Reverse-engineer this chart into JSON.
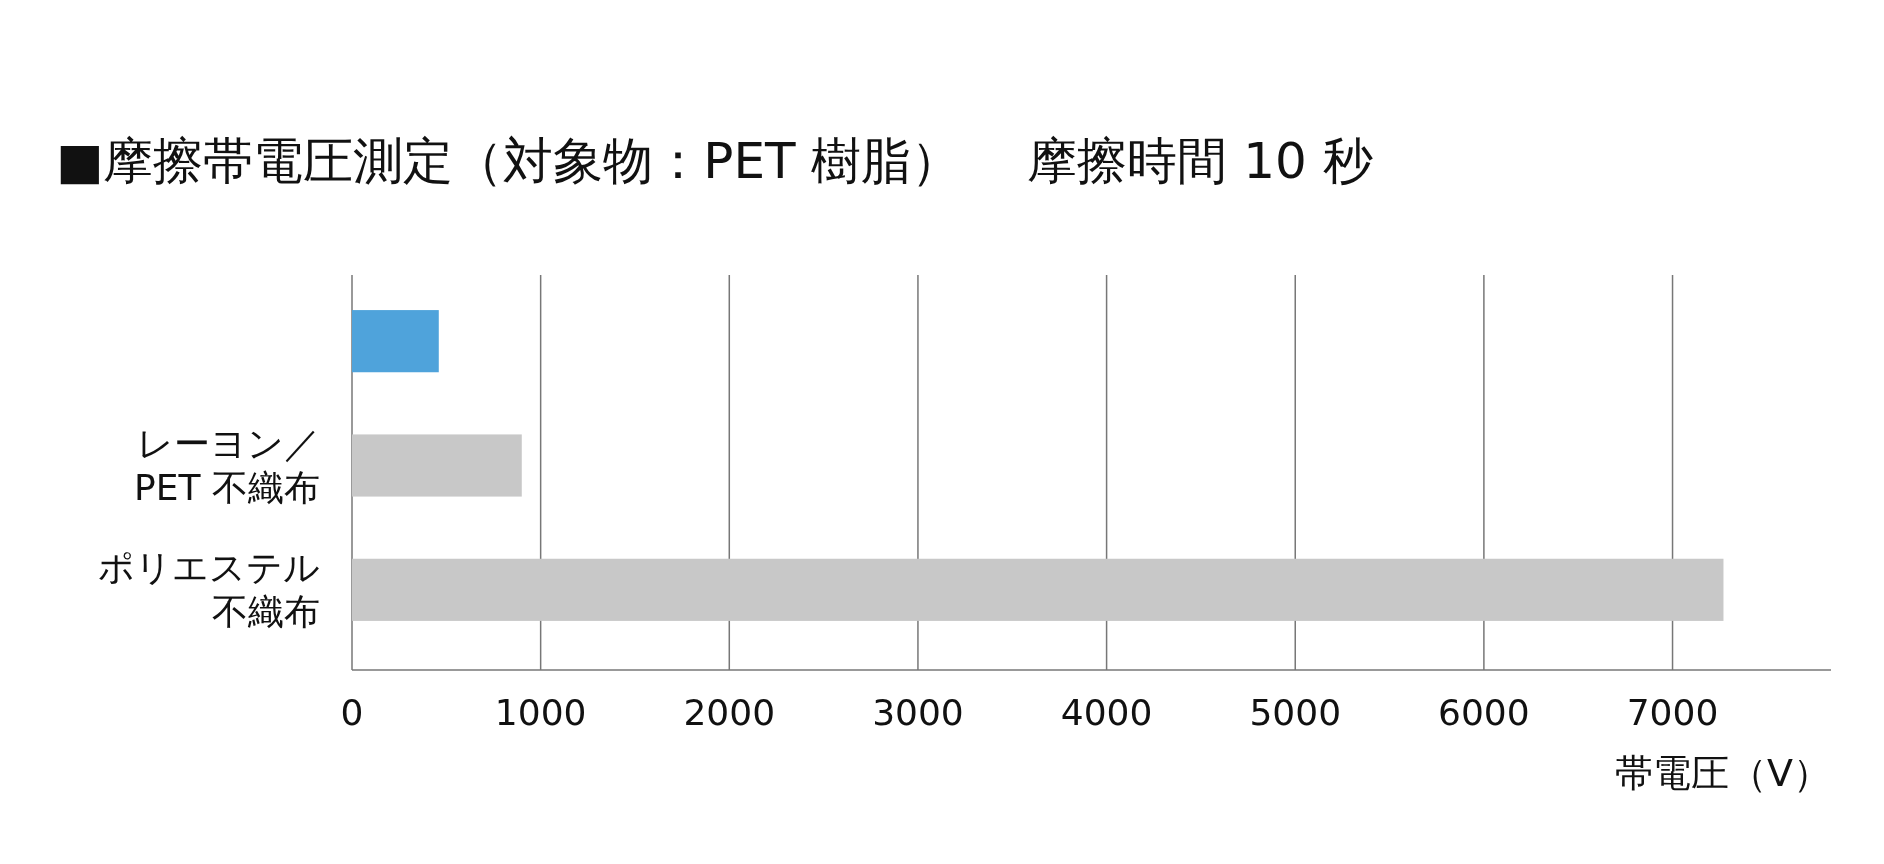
{
  "chart_data": {
    "type": "bar",
    "orientation": "horizontal",
    "title": "■摩擦帯電圧測定（対象物：PET 樹脂）　 摩擦時間 10 秒",
    "categories": [
      null,
      "レーヨン／PET 不織布",
      "ポリエステル不織布"
    ],
    "values": [
      460,
      900,
      7270
    ],
    "colors": [
      "#4fa3db",
      "#c8c8c8",
      "#c8c8c8"
    ],
    "xlim": [
      0,
      7840
    ],
    "xticks": [
      0,
      1000,
      2000,
      3000,
      4000,
      5000,
      6000,
      7000
    ],
    "xlabel": "帯電圧（V）",
    "grid": "x"
  }
}
